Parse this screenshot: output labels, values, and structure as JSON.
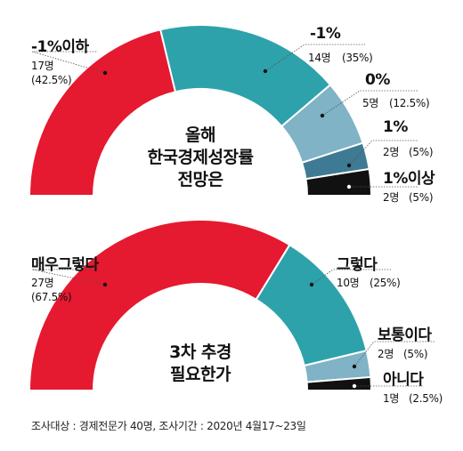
{
  "chart_data": [
    {
      "type": "pie",
      "title": "올해 한국경제성장률 전망은",
      "title_lines": [
        "올해",
        "한국경제성장률",
        "전망은"
      ],
      "categories": [
        "-1%이하",
        "-1%",
        "0%",
        "1%",
        "1%이상"
      ],
      "counts": [
        17,
        14,
        5,
        2,
        2
      ],
      "count_labels": [
        "17명",
        "14명",
        "5명",
        "2명",
        "2명"
      ],
      "values": [
        42.5,
        35,
        12.5,
        5,
        5
      ],
      "percent_labels": [
        "(42.5%)",
        "(35%)",
        "(12.5%)",
        "(5%)",
        "(5%)"
      ],
      "colors": [
        "#e5192f",
        "#2ea2ab",
        "#7fb3c5",
        "#3e7a93",
        "#111111"
      ]
    },
    {
      "type": "pie",
      "title": "3차 추경 필요한가",
      "title_lines": [
        "3차 추경",
        "필요한가"
      ],
      "categories": [
        "매우그렇다",
        "그렇다",
        "보통이다",
        "아니다"
      ],
      "counts": [
        27,
        10,
        2,
        1
      ],
      "count_labels": [
        "27명",
        "10명",
        "2명",
        "1명"
      ],
      "values": [
        67.5,
        25,
        5,
        2.5
      ],
      "percent_labels": [
        "(67.5%)",
        "(25%)",
        "(5%)",
        "(2.5%)"
      ],
      "colors": [
        "#e5192f",
        "#2ea2ab",
        "#7fb3c5",
        "#111111"
      ]
    }
  ],
  "footnote": "조사대상 : 경제전문가 40명, 조사기간 : 2020년 4월17~23일"
}
